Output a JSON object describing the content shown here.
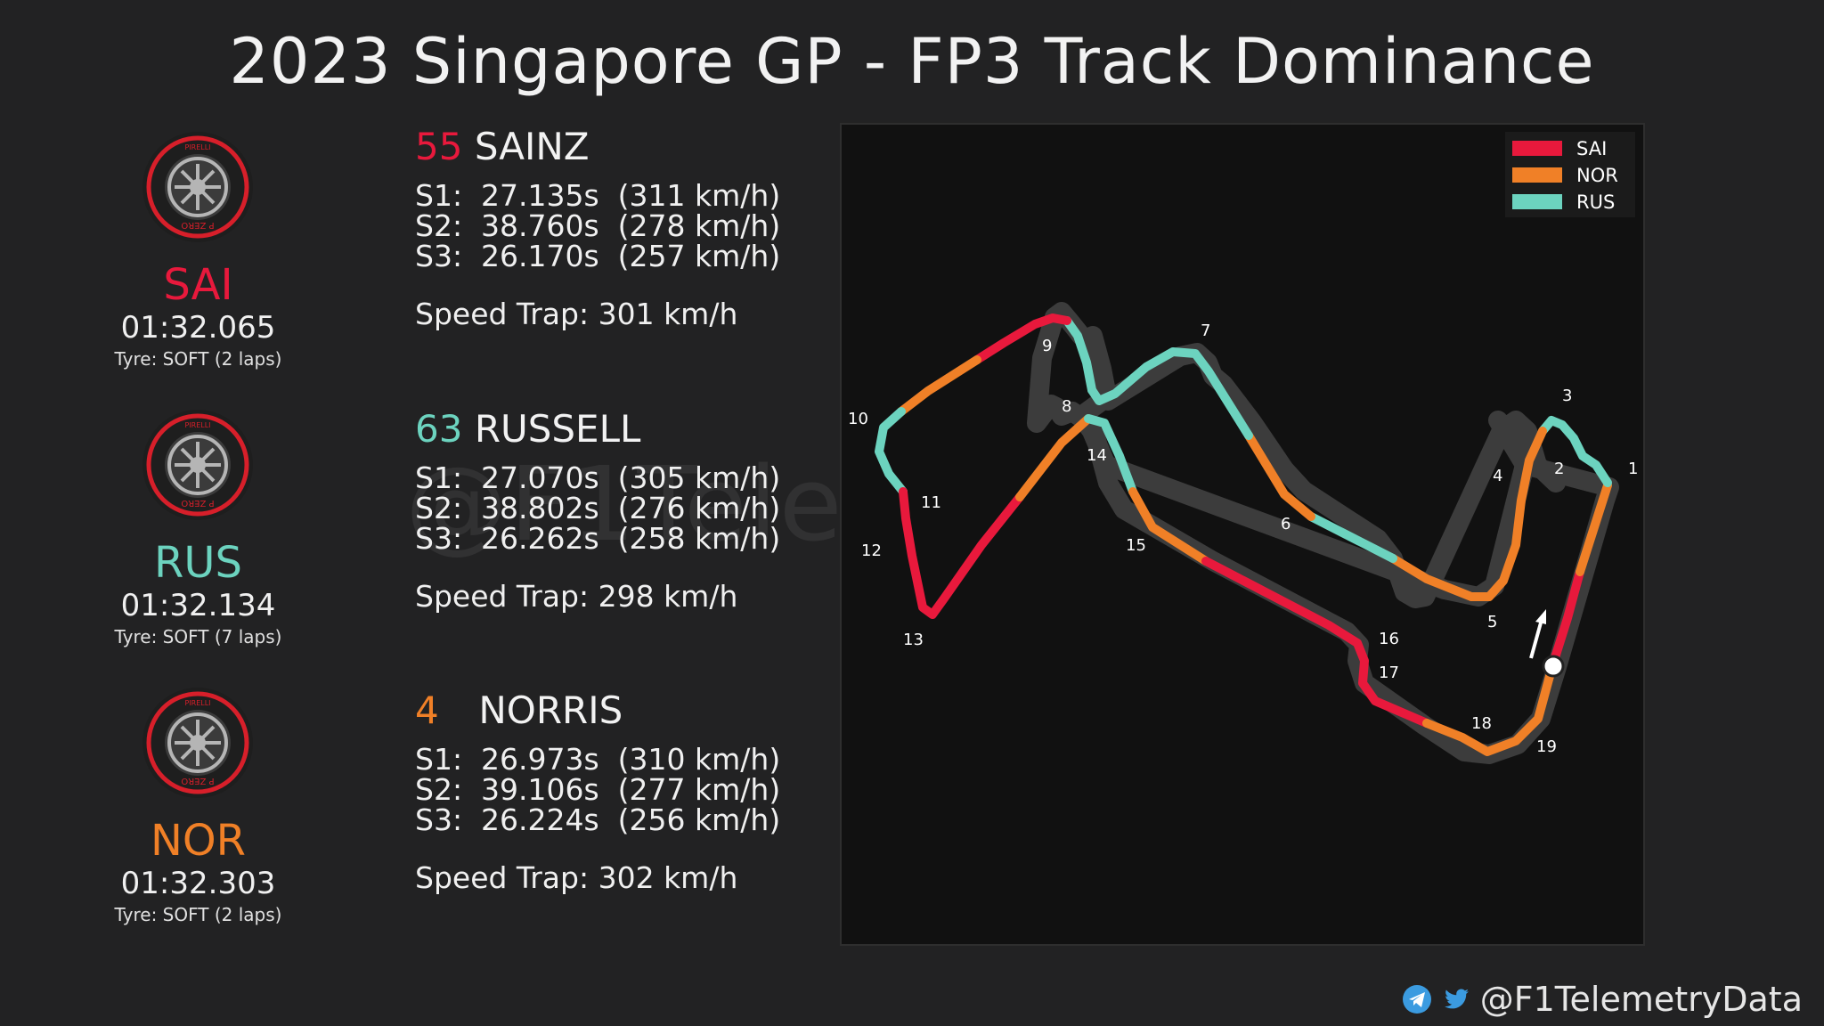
{
  "title": "2023 Singapore GP - FP3 Track Dominance",
  "watermark": "@F1TelemetryData",
  "colors": {
    "SAI": "#e8193c",
    "RUS": "#6cd3bf",
    "NOR": "#f08027"
  },
  "drivers": [
    {
      "abbr": "SAI",
      "number": "55",
      "name": "SAINZ",
      "laptime": "01:32.065",
      "tyre": "Tyre: SOFT (2 laps)",
      "s1": "S1:  27.135s  (311 km/h)",
      "s2": "S2:  38.760s  (278 km/h)",
      "s3": "S3:  26.170s  (257 km/h)",
      "trap": "Speed Trap: 301 km/h"
    },
    {
      "abbr": "RUS",
      "number": "63",
      "name": "RUSSELL",
      "laptime": "01:32.134",
      "tyre": "Tyre: SOFT (7 laps)",
      "s1": "S1:  27.070s  (305 km/h)",
      "s2": "S2:  38.802s  (276 km/h)",
      "s3": "S3:  26.262s  (258 km/h)",
      "trap": "Speed Trap: 298 km/h"
    },
    {
      "abbr": "NOR",
      "number": "4",
      "name": "NORRIS",
      "laptime": "01:32.303",
      "tyre": "Tyre: SOFT (2 laps)",
      "s1": "S1:  26.973s  (310 km/h)",
      "s2": "S2:  39.106s  (277 km/h)",
      "s3": "S3:  26.224s  (256 km/h)",
      "trap": "Speed Trap: 302 km/h"
    }
  ],
  "legend": [
    "SAI",
    "NOR",
    "RUS"
  ],
  "corners": [
    "1",
    "2",
    "3",
    "4",
    "5",
    "6",
    "7",
    "8",
    "9",
    "10",
    "11",
    "12",
    "13",
    "14",
    "15",
    "16",
    "17",
    "18",
    "19"
  ],
  "tyre_brand": "PIRELLI",
  "tyre_compound_text": "P ZERO",
  "footer": {
    "handle": "@F1TelemetryData",
    "icons": [
      "telegram-icon",
      "twitter-icon"
    ]
  }
}
